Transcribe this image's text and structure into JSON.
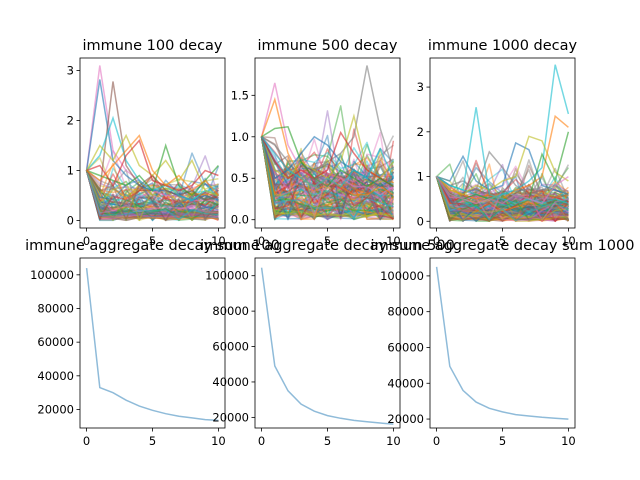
{
  "chart_data": [
    {
      "type": "line",
      "title": "immune 100 decay",
      "xlim": [
        -0.5,
        10.5
      ],
      "ylim": [
        -0.15,
        3.25
      ],
      "x": [
        0,
        1,
        2,
        3,
        4,
        5,
        6,
        7,
        8,
        9,
        10
      ],
      "xticks": [
        0,
        5,
        10
      ],
      "yticks": [
        0,
        1,
        2,
        3
      ],
      "grid": false,
      "legend": "none",
      "series_count": 100,
      "series_start": 1.0,
      "alpha": 0.45,
      "highlights": [
        {
          "color": "#e377c2",
          "values": [
            1,
            3.1,
            1.4,
            1.0,
            0.8,
            0.6,
            0.5,
            0.5,
            0.4,
            0.4,
            0.4
          ]
        },
        {
          "color": "#1f77b4",
          "values": [
            1,
            2.82,
            1.2,
            0.9,
            0.7,
            0.6,
            0.6,
            0.5,
            0.4,
            0.5,
            0.4
          ]
        },
        {
          "color": "#8c564b",
          "values": [
            1,
            0.6,
            2.78,
            1.1,
            0.7,
            0.9,
            0.6,
            0.5,
            0.6,
            0.4,
            0.5
          ]
        },
        {
          "color": "#17becf",
          "values": [
            1,
            1.3,
            2.05,
            1.2,
            0.8,
            0.6,
            0.7,
            0.5,
            0.4,
            0.6,
            0.5
          ]
        },
        {
          "color": "#bcbd22",
          "values": [
            1,
            1.5,
            1.2,
            1.7,
            1.1,
            0.9,
            1.2,
            0.8,
            1.2,
            0.6,
            0.5
          ]
        },
        {
          "color": "#2ca02c",
          "values": [
            1,
            0.9,
            0.8,
            0.7,
            0.9,
            0.6,
            1.5,
            0.7,
            0.5,
            0.8,
            1.1
          ]
        },
        {
          "color": "#d62728",
          "values": [
            1,
            1.1,
            0.7,
            1.3,
            1.6,
            0.8,
            0.7,
            0.6,
            0.7,
            1.0,
            0.9
          ]
        },
        {
          "color": "#ff7f0e",
          "values": [
            1,
            0.8,
            1.1,
            1.4,
            1.7,
            1.0,
            0.7,
            0.9,
            0.6,
            0.8,
            0.5
          ]
        }
      ]
    },
    {
      "type": "line",
      "title": "immune 500 decay",
      "xlim": [
        -0.5,
        10.5
      ],
      "ylim": [
        -0.1,
        1.95
      ],
      "x": [
        0,
        1,
        2,
        3,
        4,
        5,
        6,
        7,
        8,
        9,
        10
      ],
      "xticks": [
        0,
        5,
        10
      ],
      "yticks": [
        0.0,
        0.5,
        1.0,
        1.5
      ],
      "grid": false,
      "legend": "none",
      "series_count": 130,
      "series_start": 1.0,
      "alpha": 0.45,
      "highlights": [
        {
          "color": "#7f7f7f",
          "values": [
            1,
            0.9,
            0.7,
            0.5,
            0.6,
            0.7,
            0.8,
            1.0,
            1.86,
            1.1,
            0.6
          ]
        },
        {
          "color": "#e377c2",
          "values": [
            1,
            1.65,
            0.9,
            0.6,
            0.5,
            0.4,
            0.5,
            0.4,
            0.4,
            0.3,
            0.4
          ]
        },
        {
          "color": "#ff7f0e",
          "values": [
            1,
            1.45,
            0.8,
            0.5,
            0.4,
            0.5,
            0.4,
            0.3,
            0.3,
            0.4,
            0.3
          ]
        },
        {
          "color": "#bcbd22",
          "values": [
            1,
            0.6,
            0.5,
            0.7,
            0.6,
            0.5,
            0.7,
            1.25,
            0.6,
            0.5,
            0.7
          ]
        },
        {
          "color": "#1f77b4",
          "values": [
            1,
            0.5,
            0.6,
            0.8,
            1.0,
            0.9,
            0.7,
            0.6,
            0.5,
            0.4,
            0.5
          ]
        },
        {
          "color": "#d62728",
          "values": [
            1,
            0.7,
            0.5,
            0.6,
            0.5,
            0.6,
            1.05,
            0.8,
            0.6,
            0.5,
            0.4
          ]
        },
        {
          "color": "#2ca02c",
          "values": [
            1,
            1.1,
            1.12,
            0.7,
            0.5,
            0.4,
            0.6,
            0.5,
            0.4,
            0.5,
            0.4
          ]
        },
        {
          "color": "#17becf",
          "values": [
            1,
            0.8,
            0.6,
            0.5,
            0.4,
            0.5,
            0.4,
            0.6,
            0.5,
            0.85,
            0.5
          ]
        }
      ]
    },
    {
      "type": "line",
      "title": "immune 1000 decay",
      "xlim": [
        -0.5,
        10.5
      ],
      "ylim": [
        -0.15,
        3.65
      ],
      "x": [
        0,
        1,
        2,
        3,
        4,
        5,
        6,
        7,
        8,
        9,
        10
      ],
      "xticks": [
        0,
        5,
        10
      ],
      "yticks": [
        0,
        1,
        2,
        3
      ],
      "grid": false,
      "legend": "none",
      "series_count": 160,
      "series_start": 1.0,
      "alpha": 0.45,
      "highlights": [
        {
          "color": "#17becf",
          "values": [
            1,
            0.8,
            0.7,
            0.6,
            0.5,
            0.6,
            0.7,
            0.9,
            1.2,
            3.5,
            2.4
          ]
        },
        {
          "color": "#ff7f0e",
          "values": [
            1,
            0.7,
            0.6,
            0.5,
            0.6,
            0.5,
            0.7,
            0.8,
            1.0,
            2.35,
            2.1
          ]
        },
        {
          "color": "#1f77b4",
          "values": [
            1,
            0.9,
            1.45,
            0.9,
            0.7,
            0.8,
            1.75,
            1.6,
            0.8,
            0.7,
            0.6
          ]
        },
        {
          "color": "#7f7f7f",
          "values": [
            1,
            0.8,
            0.9,
            0.7,
            1.55,
            1.2,
            0.8,
            0.6,
            0.7,
            0.8,
            0.6
          ]
        },
        {
          "color": "#bcbd22",
          "values": [
            1,
            0.7,
            0.6,
            0.8,
            0.7,
            0.9,
            1.0,
            1.9,
            1.8,
            1.1,
            0.9
          ]
        },
        {
          "color": "#2ca02c",
          "values": [
            1,
            0.6,
            0.5,
            0.6,
            0.5,
            0.4,
            0.6,
            0.5,
            1.5,
            0.9,
            2.0
          ]
        },
        {
          "color": "#17becf",
          "values": [
            1,
            0.8,
            0.7,
            2.55,
            0.6,
            0.5,
            0.4,
            0.5,
            0.4,
            0.5,
            0.4
          ]
        },
        {
          "color": "#e377c2",
          "values": [
            1,
            0.6,
            0.5,
            0.4,
            0.5,
            0.4,
            0.6,
            0.5,
            0.4,
            0.8,
            1.0
          ]
        }
      ]
    },
    {
      "type": "line",
      "title": "immune aggregate decay sum 100",
      "xlim": [
        -0.5,
        10.5
      ],
      "ylim": [
        9000,
        110000
      ],
      "xticks": [
        0,
        5,
        10
      ],
      "yticks": [
        20000,
        40000,
        60000,
        80000,
        100000
      ],
      "grid": false,
      "legend": "none",
      "series": [
        {
          "color": "#1f77b4",
          "alpha": 0.5,
          "x": [
            0,
            1,
            2,
            3,
            4,
            5,
            6,
            7,
            8,
            9,
            10
          ],
          "values": [
            104000,
            33000,
            30000,
            25500,
            22000,
            19500,
            17500,
            16000,
            15000,
            14000,
            13500
          ]
        }
      ]
    },
    {
      "type": "line",
      "title": "immune aggregate decay sum 500",
      "xlim": [
        -0.5,
        10.5
      ],
      "ylim": [
        14000,
        110000
      ],
      "xticks": [
        0,
        5,
        10
      ],
      "yticks": [
        20000,
        40000,
        60000,
        80000,
        100000
      ],
      "grid": false,
      "legend": "none",
      "series": [
        {
          "color": "#1f77b4",
          "alpha": 0.5,
          "x": [
            0,
            1,
            2,
            3,
            4,
            5,
            6,
            7,
            8,
            9,
            10
          ],
          "values": [
            104500,
            49000,
            35000,
            27500,
            23500,
            21000,
            19500,
            18300,
            17500,
            16800,
            16200
          ]
        }
      ]
    },
    {
      "type": "line",
      "title": "immune aggregate decay sum 1000",
      "xlim": [
        -0.5,
        10.5
      ],
      "ylim": [
        15000,
        110000
      ],
      "xticks": [
        0,
        5,
        10
      ],
      "yticks": [
        20000,
        40000,
        60000,
        80000,
        100000
      ],
      "grid": false,
      "legend": "none",
      "series": [
        {
          "color": "#1f77b4",
          "alpha": 0.5,
          "x": [
            0,
            1,
            2,
            3,
            4,
            5,
            6,
            7,
            8,
            9,
            10
          ],
          "values": [
            105000,
            49500,
            36000,
            29500,
            26000,
            24000,
            22500,
            21700,
            21000,
            20500,
            20000
          ]
        }
      ]
    }
  ]
}
